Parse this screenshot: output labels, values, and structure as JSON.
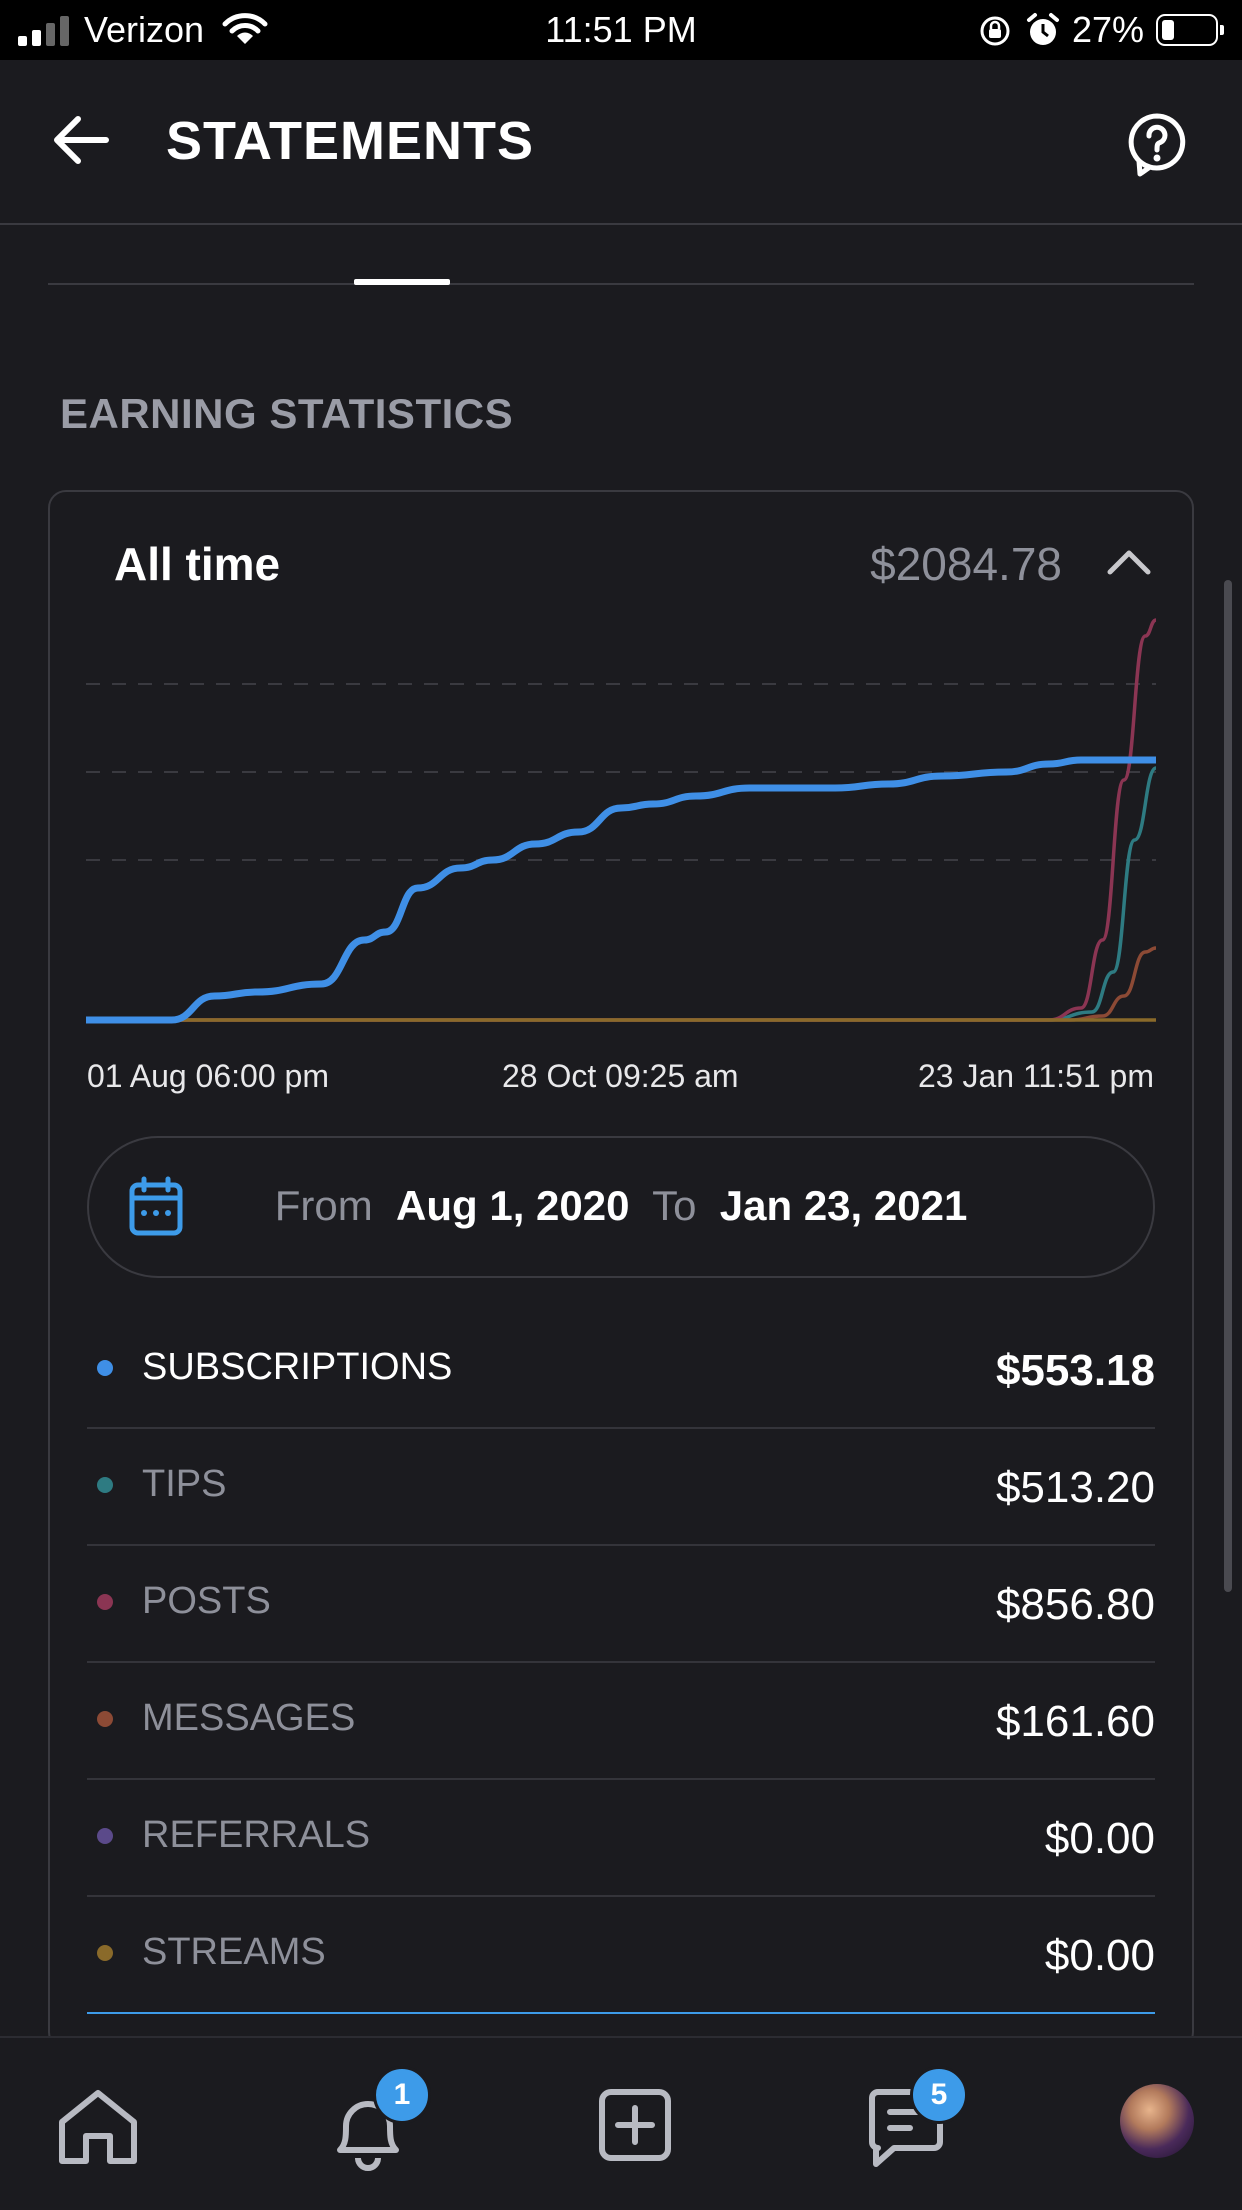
{
  "status_bar": {
    "carrier": "Verizon",
    "time": "11:51 PM",
    "battery": "27%"
  },
  "header": {
    "title": "STATEMENTS"
  },
  "section_title": "EARNING STATISTICS",
  "card": {
    "period": "All time",
    "total": "$2084.78"
  },
  "chart_data": {
    "type": "line",
    "x_tick_labels": [
      "01 Aug 06:00 pm",
      "28 Oct 09:25 am",
      "23 Jan 11:51 pm"
    ],
    "grid": true,
    "legend": "none",
    "ylim": [
      0,
      1000
    ],
    "series": [
      {
        "name": "SUBSCRIPTIONS",
        "color": "#3f8fe6",
        "x": [
          0,
          0.08,
          0.12,
          0.16,
          0.22,
          0.26,
          0.28,
          0.31,
          0.35,
          0.38,
          0.42,
          0.46,
          0.5,
          0.53,
          0.57,
          0.62,
          0.66,
          0.7,
          0.75,
          0.8,
          0.86,
          0.9,
          0.93,
          1.0
        ],
        "values": [
          0,
          0,
          60,
          70,
          90,
          200,
          220,
          330,
          380,
          400,
          440,
          470,
          530,
          540,
          560,
          580,
          580,
          580,
          590,
          610,
          620,
          640,
          650,
          650
        ]
      },
      {
        "name": "TIPS",
        "color": "#2e7b82",
        "x": [
          0,
          0.9,
          0.94,
          0.96,
          0.98,
          1.0
        ],
        "values": [
          0,
          0,
          20,
          120,
          450,
          630
        ]
      },
      {
        "name": "POSTS",
        "color": "#8b3553",
        "x": [
          0,
          0.9,
          0.93,
          0.95,
          0.97,
          0.99,
          1.0
        ],
        "values": [
          0,
          0,
          30,
          200,
          600,
          960,
          1000
        ]
      },
      {
        "name": "MESSAGES",
        "color": "#8c4a35",
        "x": [
          0,
          0.92,
          0.95,
          0.97,
          0.99,
          1.0
        ],
        "values": [
          0,
          0,
          10,
          60,
          170,
          180
        ]
      },
      {
        "name": "STREAMS",
        "color": "#8a6a2a",
        "x": [
          0,
          1.0
        ],
        "values": [
          0,
          0
        ]
      }
    ]
  },
  "date_range": {
    "from_label": "From",
    "from_value": "Aug 1, 2020",
    "to_label": "To",
    "to_value": "Jan 23, 2021"
  },
  "breakdown": [
    {
      "name": "SUBSCRIPTIONS",
      "amount": "$553.18",
      "color": "#3f8fe6"
    },
    {
      "name": "TIPS",
      "amount": "$513.20",
      "color": "#2e7b82"
    },
    {
      "name": "POSTS",
      "amount": "$856.80",
      "color": "#8b3553"
    },
    {
      "name": "MESSAGES",
      "amount": "$161.60",
      "color": "#8c4a35"
    },
    {
      "name": "REFERRALS",
      "amount": "$0.00",
      "color": "#5b4a8a"
    },
    {
      "name": "STREAMS",
      "amount": "$0.00",
      "color": "#8a6a2a"
    }
  ],
  "bottom_nav": {
    "notifications_badge": "1",
    "messages_badge": "5"
  }
}
